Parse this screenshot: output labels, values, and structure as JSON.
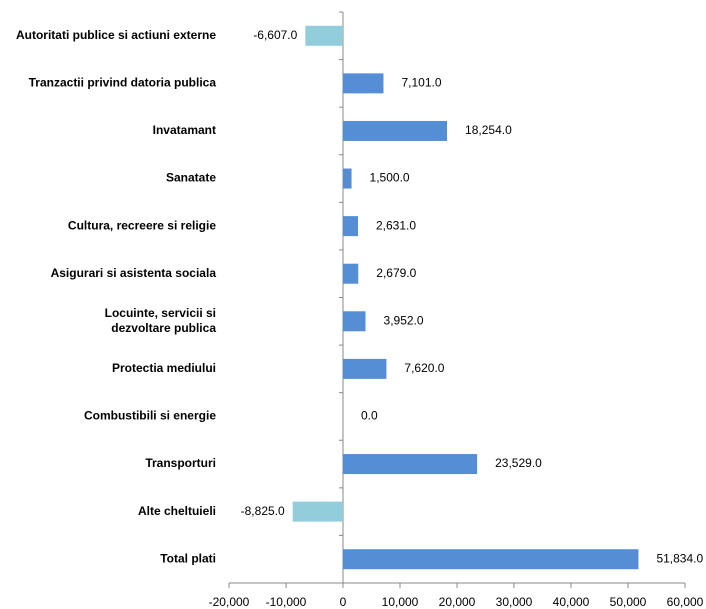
{
  "chart_data": {
    "type": "bar",
    "orientation": "horizontal",
    "categories": [
      "Autoritati publice si actiuni externe",
      "Tranzactii privind datoria publica",
      "Invatamant",
      "Sanatate",
      "Cultura, recreere si religie",
      "Asigurari si asistenta sociala",
      "Locuinte, servicii si\ndezvoltare publica",
      "Protectia mediului",
      "Combustibili si energie",
      "Transporturi",
      "Alte cheltuieli",
      "Total plati"
    ],
    "values": [
      -6607,
      7101,
      18254,
      1500,
      2631,
      2679,
      3952,
      7620,
      0,
      23529,
      -8825,
      51834
    ],
    "value_labels": [
      "-6,607.0",
      "7,101.0",
      "18,254.0",
      "1,500.0",
      "2,631.0",
      "2,679.0",
      "3,952.0",
      "7,620.0",
      "0.0",
      "23,529.0",
      "-8,825.0",
      "51,834.0"
    ],
    "color": "#558ed5",
    "negative_color": "#92cddc",
    "xlim": [
      -20000,
      60000
    ],
    "xticks": [
      {
        "value": -20000,
        "label": "-20,000"
      },
      {
        "value": -10000,
        "label": "-10,000"
      },
      0,
      {
        "value": 10000,
        "label": "10,000"
      },
      {
        "value": 20000,
        "label": "20,000"
      },
      {
        "value": 30000,
        "label": "30,000"
      },
      {
        "value": 40000,
        "label": "40,000"
      },
      {
        "value": 50000,
        "label": "50,000"
      },
      {
        "value": 60000,
        "label": "60,000"
      }
    ],
    "grid": false
  }
}
